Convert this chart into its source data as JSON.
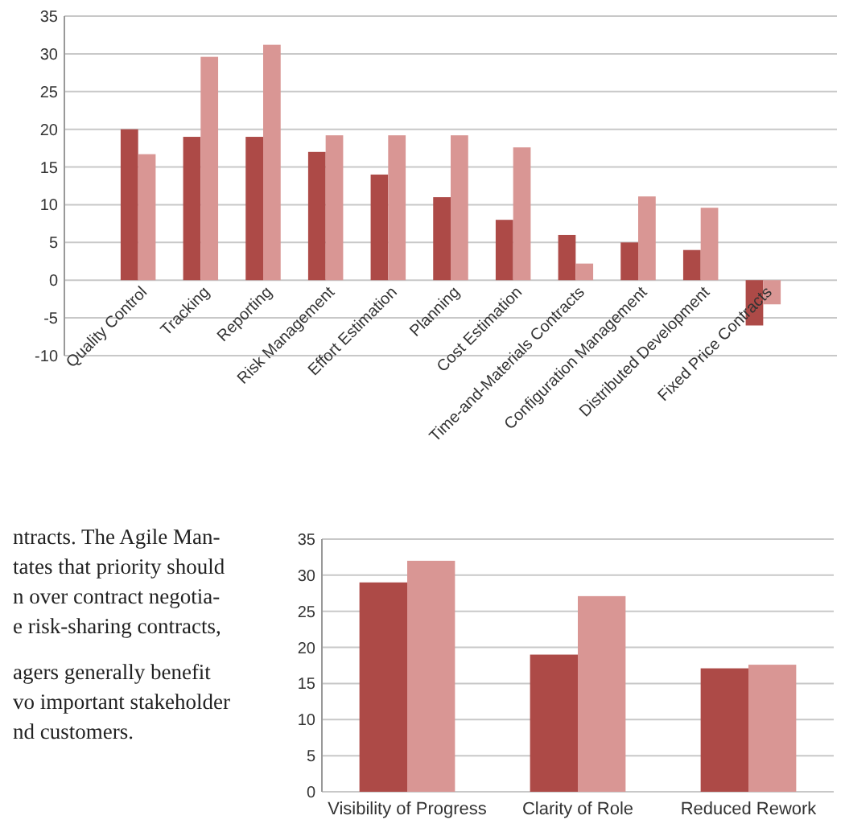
{
  "chart_data": [
    {
      "type": "bar",
      "categories": [
        "Quality Control",
        "Tracking",
        "Reporting",
        "Risk Management",
        "Effort Estimation",
        "Planning",
        "Cost Estimation",
        "Time-and-Materials Contracts",
        "Configuration Management",
        "Distributed Development",
        "Fixed Price Contracts"
      ],
      "series": [
        {
          "color": "#ad4a47",
          "values": [
            20,
            19,
            19,
            17,
            14,
            11,
            8,
            6,
            5,
            4,
            -6
          ]
        },
        {
          "color": "#d99694",
          "values": [
            16.7,
            29.6,
            31.2,
            19.2,
            19.2,
            19.2,
            17.6,
            2.2,
            11.1,
            9.6,
            -3.2
          ]
        }
      ],
      "ylim": [
        -10,
        35
      ],
      "yticks": [
        -10,
        -5,
        0,
        5,
        10,
        15,
        20,
        25,
        30,
        35
      ],
      "grid": "y"
    },
    {
      "type": "other",
      "annotations": [
        "ntracts. The Agile Man-",
        "tates that priority should",
        "n over contract negotia-",
        "e risk-sharing contracts,",
        "agers generally benefit",
        "vo important stakeholder",
        "nd customers."
      ]
    },
    {
      "type": "bar",
      "categories": [
        "Visibility of Progress",
        "Clarity of Role",
        "Reduced Rework"
      ],
      "series": [
        {
          "color": "#ad4a47",
          "values": [
            29,
            19,
            17.1
          ]
        },
        {
          "color": "#d99694",
          "values": [
            32,
            27.1,
            17.6
          ]
        }
      ],
      "ylim": [
        0,
        35
      ],
      "yticks": [
        0,
        5,
        10,
        15,
        20,
        25,
        30,
        35
      ],
      "grid": "y"
    }
  ]
}
